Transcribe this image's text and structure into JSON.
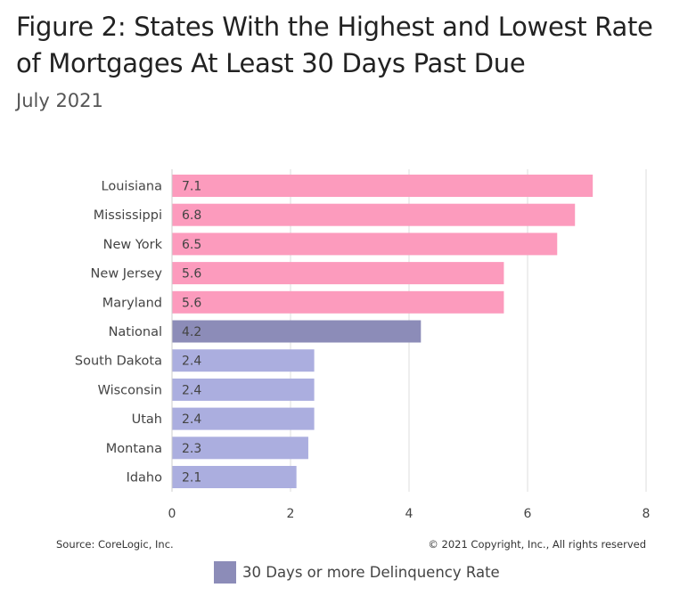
{
  "chart_data": {
    "type": "bar",
    "orientation": "horizontal",
    "title": "Figure 2: States With the Highest and Lowest Rate of Mortgages At Least 30 Days Past Due",
    "subtitle": "July 2021",
    "categories": [
      "Louisiana",
      "Mississippi",
      "New York",
      "New Jersey",
      "Maryland",
      "National",
      "South Dakota",
      "Wisconsin",
      "Utah",
      "Montana",
      "Idaho"
    ],
    "values": [
      7.1,
      6.8,
      6.5,
      5.6,
      5.6,
      4.2,
      2.4,
      2.4,
      2.4,
      2.3,
      2.1
    ],
    "bar_colors": [
      "#fc9bbd",
      "#fc9bbd",
      "#fc9bbd",
      "#fc9bbd",
      "#fc9bbd",
      "#8c8cb8",
      "#abaedf",
      "#abaedf",
      "#abaedf",
      "#abaedf",
      "#abaedf"
    ],
    "xlim": [
      0,
      8
    ],
    "xticks": [
      0,
      2,
      4,
      6,
      8
    ],
    "grid": true,
    "legend": {
      "position": "bottom",
      "entries": [
        {
          "label": "30 Days or more Delinquency Rate",
          "color": "#8c8cb8"
        }
      ]
    }
  },
  "footer": {
    "source": "Source: CoreLogic, Inc.",
    "copyright": "© 2021 Copyright, Inc., All rights reserved"
  }
}
